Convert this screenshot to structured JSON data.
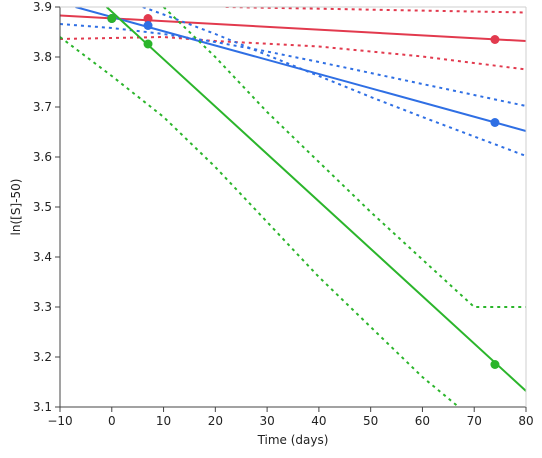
{
  "chart_data": {
    "type": "line",
    "title": "",
    "xlabel": "Time (days)",
    "ylabel": "ln([S]-50)",
    "xlim": [
      -10,
      80
    ],
    "ylim": [
      3.1,
      3.9
    ],
    "xticks": [
      -10,
      0,
      10,
      20,
      30,
      40,
      50,
      60,
      70,
      80
    ],
    "yticks": [
      3.1,
      3.2,
      3.3,
      3.4,
      3.5,
      3.6,
      3.7,
      3.8,
      3.9
    ],
    "xtick_labels": [
      "−10",
      "0",
      "10",
      "20",
      "30",
      "40",
      "50",
      "60",
      "70",
      "80"
    ],
    "ytick_labels": [
      "3.1",
      "3.2",
      "3.3",
      "3.4",
      "3.5",
      "3.6",
      "3.7",
      "3.8",
      "3.9"
    ],
    "grid": false,
    "legend": "none",
    "series": [
      {
        "color": "#e23a4e",
        "points": [
          [
            0,
            3.877
          ],
          [
            7,
            3.877
          ],
          [
            74,
            3.835
          ]
        ],
        "fit_line": [
          [
            -10,
            3.883
          ],
          [
            80,
            3.832
          ]
        ],
        "ci_upper": [
          [
            22,
            3.9
          ],
          [
            80,
            3.889
          ]
        ],
        "ci_lower": [
          [
            -10,
            3.836
          ],
          [
            0,
            3.838
          ],
          [
            10,
            3.84
          ],
          [
            20,
            3.832
          ],
          [
            40,
            3.821
          ],
          [
            60,
            3.801
          ],
          [
            80,
            3.775
          ]
        ]
      },
      {
        "color": "#2f6fe4",
        "points": [
          [
            0,
            3.877
          ],
          [
            7,
            3.863
          ],
          [
            74,
            3.669
          ]
        ],
        "fit_line": [
          [
            -7,
            3.9
          ],
          [
            80,
            3.652
          ]
        ],
        "ci_upper": [
          [
            -10,
            3.866
          ],
          [
            0,
            3.858
          ],
          [
            10,
            3.846
          ],
          [
            20,
            3.83
          ],
          [
            30,
            3.811
          ],
          [
            40,
            3.79
          ],
          [
            50,
            3.768
          ],
          [
            60,
            3.746
          ],
          [
            70,
            3.724
          ],
          [
            80,
            3.702
          ]
        ],
        "ci_lower": [
          [
            6,
            3.9
          ],
          [
            10,
            3.885
          ],
          [
            20,
            3.846
          ],
          [
            30,
            3.804
          ],
          [
            40,
            3.762
          ],
          [
            50,
            3.72
          ],
          [
            60,
            3.68
          ],
          [
            70,
            3.641
          ],
          [
            80,
            3.602
          ]
        ]
      },
      {
        "color": "#2bb52b",
        "points": [
          [
            0,
            3.877
          ],
          [
            7,
            3.826
          ],
          [
            74,
            3.185
          ]
        ],
        "fit_line": [
          [
            -1,
            3.9
          ],
          [
            80,
            3.132
          ]
        ],
        "ci_upper": [
          [
            10,
            3.9
          ],
          [
            20,
            3.8
          ],
          [
            30,
            3.69
          ],
          [
            40,
            3.59
          ],
          [
            50,
            3.49
          ],
          [
            60,
            3.395
          ],
          [
            70,
            3.3
          ],
          [
            80,
            3.3
          ]
        ],
        "ci_lower": [
          [
            -10,
            3.84
          ],
          [
            0,
            3.762
          ],
          [
            10,
            3.68
          ],
          [
            20,
            3.58
          ],
          [
            30,
            3.47
          ],
          [
            40,
            3.36
          ],
          [
            50,
            3.26
          ],
          [
            60,
            3.16
          ],
          [
            67,
            3.1
          ]
        ]
      }
    ]
  }
}
